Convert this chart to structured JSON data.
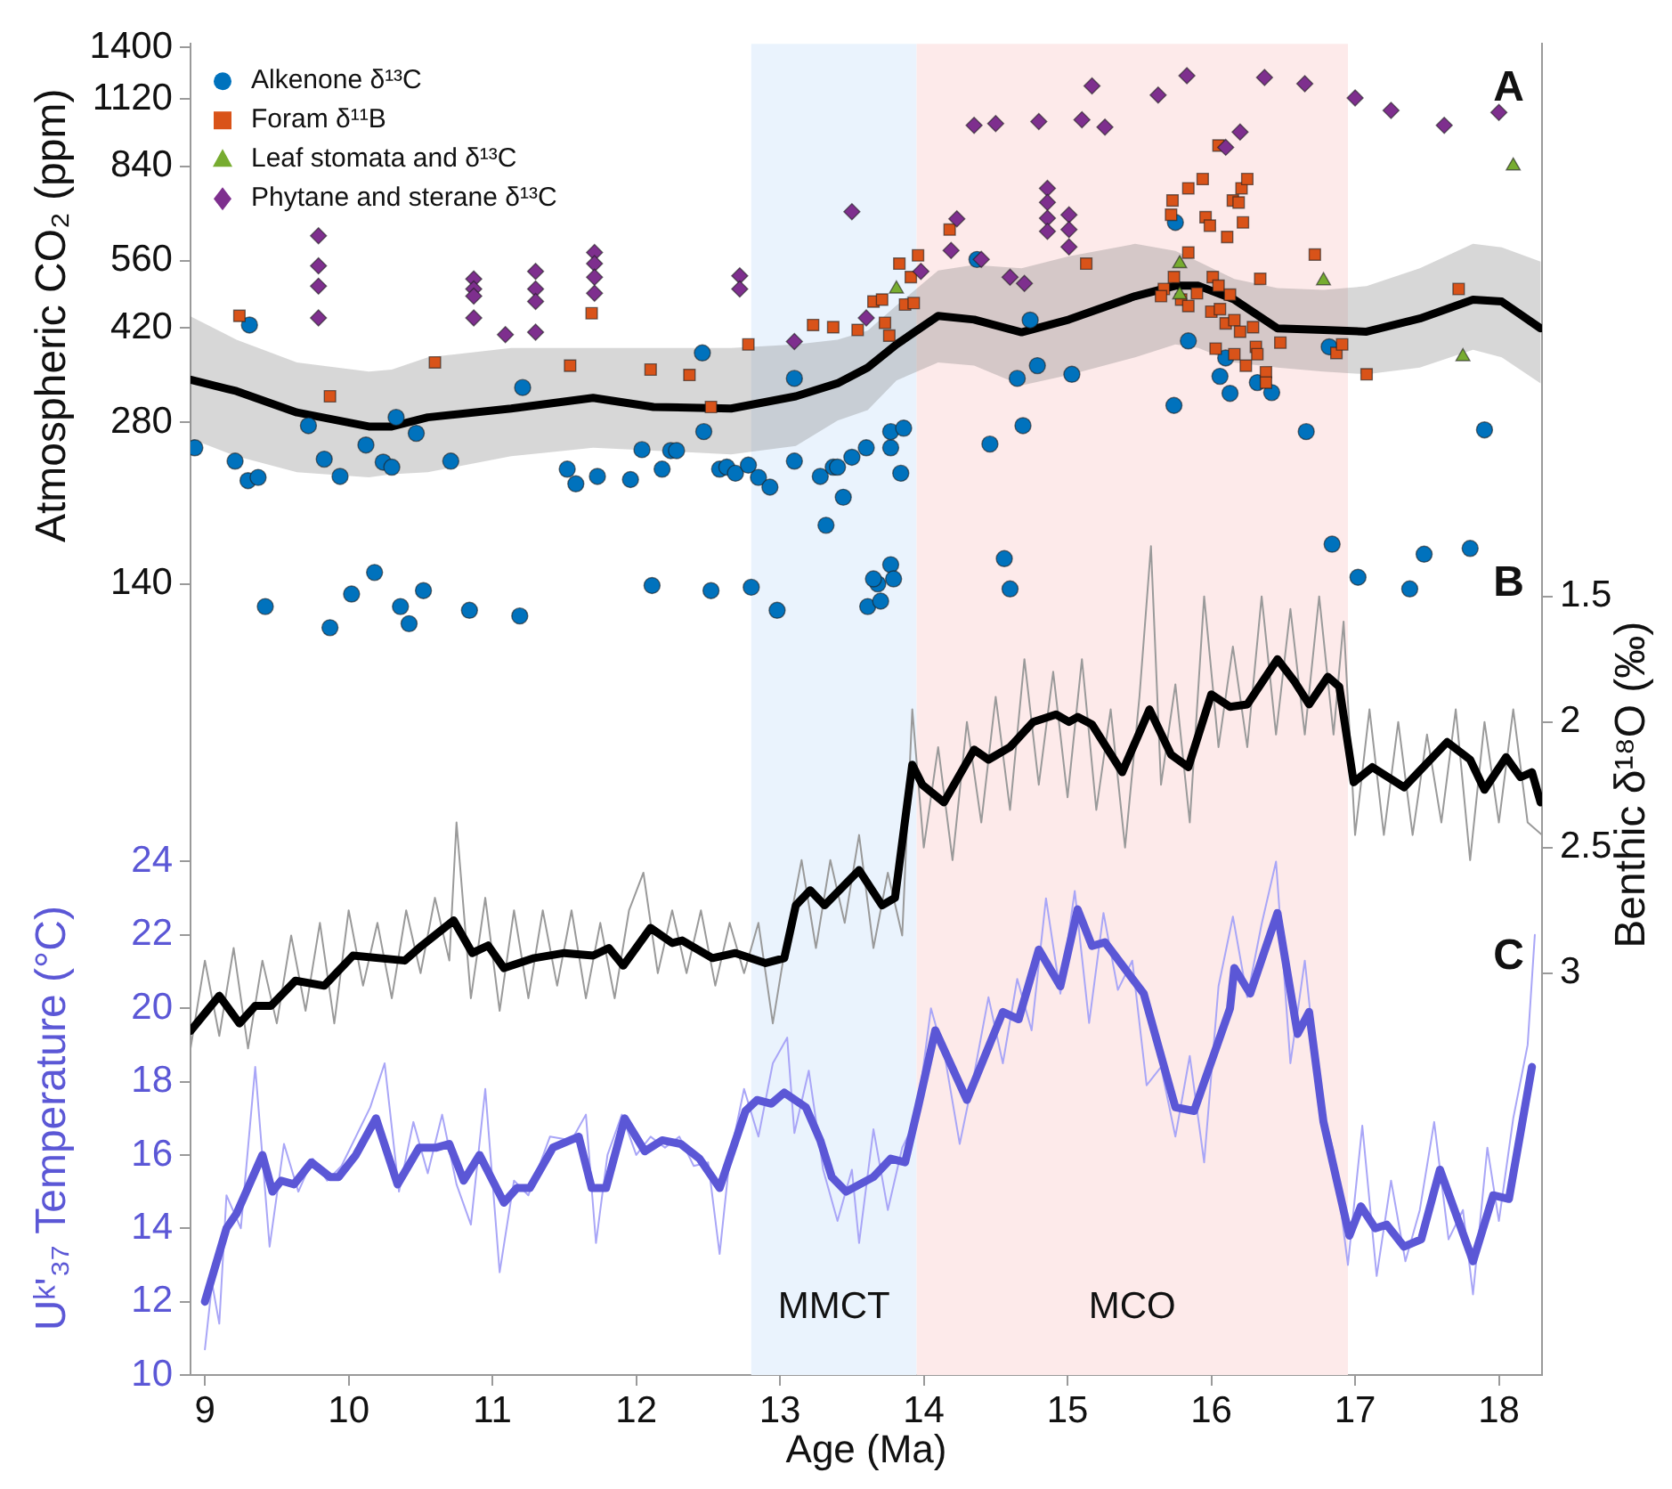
{
  "chart_data": {
    "type": "line",
    "xlabel": "Age (Ma)",
    "ylabel": "Atmospheric CO₂ (ppm)",
    "y2label": "Benthic δ¹⁸O (‰)",
    "y3label": "Uᵏ'₃₇ Temperature (°C)",
    "xlim": [
      8.9,
      18.3
    ],
    "xticks": [
      9,
      10,
      11,
      12,
      13,
      14,
      15,
      16,
      17,
      18
    ],
    "ylim": [
      4.7,
      1420
    ],
    "yticks": [
      140,
      280,
      420,
      560,
      840,
      1120,
      1400
    ],
    "log": "y",
    "y2lim": [
      4.6,
      -0.7
    ],
    "y2ticks": [
      1.5,
      2,
      2.5,
      3
    ],
    "y3lim": [
      10,
      46.3
    ],
    "y3ticks": [
      10,
      12,
      14,
      16,
      18,
      20,
      22,
      24
    ],
    "grid": false,
    "legend": "top left",
    "bands": [
      {
        "axis": "x",
        "from": 12.8,
        "to": 13.95,
        "label": "MMCT",
        "color": "#eaf3fd"
      },
      {
        "axis": "x",
        "from": 13.95,
        "to": 16.95,
        "label": "MCO",
        "color": "#fdeaea"
      }
    ],
    "annotations": [
      "A",
      "B",
      "C"
    ],
    "series": [
      {
        "type": "line",
        "axis": "y2",
        "color": "#9a9a9a",
        "x": [
          8.9,
          9.0,
          9.1,
          9.2,
          9.3,
          9.4,
          9.5,
          9.6,
          9.7,
          9.8,
          9.9,
          10.0,
          10.1,
          10.2,
          10.3,
          10.4,
          10.5,
          10.6,
          10.7,
          10.75,
          10.85,
          10.95,
          11.05,
          11.15,
          11.25,
          11.35,
          11.45,
          11.55,
          11.65,
          11.75,
          11.85,
          11.95,
          12.05,
          12.15,
          12.25,
          12.35,
          12.45,
          12.55,
          12.65,
          12.75,
          12.85,
          12.95,
          13.05,
          13.15,
          13.25,
          13.35,
          13.45,
          13.55,
          13.65,
          13.75,
          13.85,
          13.92,
          14.0,
          14.1,
          14.2,
          14.3,
          14.4,
          14.5,
          14.6,
          14.7,
          14.8,
          14.9,
          15.0,
          15.1,
          15.2,
          15.3,
          15.4,
          15.5,
          15.58,
          15.65,
          15.75,
          15.85,
          15.95,
          16.05,
          16.15,
          16.25,
          16.35,
          16.45,
          16.55,
          16.65,
          16.75,
          16.85,
          16.92,
          17.0,
          17.1,
          17.2,
          17.3,
          17.4,
          17.5,
          17.6,
          17.7,
          17.8,
          17.9,
          18.0,
          18.1,
          18.2,
          18.3
        ],
        "values": [
          3.3,
          2.95,
          3.25,
          2.9,
          3.3,
          2.95,
          3.2,
          2.85,
          3.15,
          2.8,
          3.2,
          2.75,
          3.05,
          2.8,
          3.1,
          2.75,
          3.0,
          2.7,
          2.95,
          2.4,
          3.1,
          2.7,
          3.15,
          2.75,
          3.1,
          2.75,
          3.05,
          2.75,
          3.1,
          2.8,
          3.1,
          2.75,
          2.6,
          3.0,
          2.75,
          3.0,
          2.75,
          3.05,
          2.8,
          3.0,
          2.8,
          3.2,
          2.85,
          2.55,
          2.9,
          2.55,
          2.8,
          2.45,
          2.9,
          2.6,
          2.85,
          1.95,
          2.5,
          2.1,
          2.55,
          2.0,
          2.4,
          1.9,
          2.35,
          1.75,
          2.25,
          1.8,
          2.3,
          1.75,
          2.35,
          1.95,
          2.5,
          1.9,
          1.3,
          2.25,
          1.85,
          2.4,
          1.5,
          2.1,
          1.7,
          2.1,
          1.5,
          2.05,
          1.55,
          2.05,
          1.5,
          2.05,
          1.6,
          2.45,
          1.95,
          2.45,
          2.0,
          2.45,
          2.05,
          2.4,
          1.95,
          2.55,
          2.0,
          2.4,
          1.95,
          2.4,
          2.45
        ]
      },
      {
        "type": "line",
        "axis": "y3",
        "color": "#a9a6f7",
        "x": [
          9.0,
          9.05,
          9.1,
          9.15,
          9.25,
          9.35,
          9.45,
          9.55,
          9.65,
          9.75,
          9.85,
          9.95,
          10.05,
          10.15,
          10.25,
          10.35,
          10.45,
          10.55,
          10.65,
          10.75,
          10.85,
          10.95,
          11.05,
          11.15,
          11.25,
          11.4,
          11.55,
          11.65,
          11.72,
          11.8,
          11.9,
          12.0,
          12.1,
          12.2,
          12.3,
          12.4,
          12.5,
          12.58,
          12.65,
          12.75,
          12.85,
          12.95,
          13.05,
          13.1,
          13.2,
          13.3,
          13.4,
          13.5,
          13.55,
          13.65,
          13.75,
          13.85,
          13.95,
          14.05,
          14.15,
          14.25,
          14.35,
          14.45,
          14.55,
          14.65,
          14.75,
          14.85,
          14.95,
          15.05,
          15.15,
          15.25,
          15.35,
          15.45,
          15.55,
          15.65,
          15.75,
          15.85,
          15.95,
          16.05,
          16.15,
          16.25,
          16.35,
          16.45,
          16.55,
          16.65,
          16.75,
          16.85,
          16.95,
          17.05,
          17.15,
          17.25,
          17.35,
          17.45,
          17.55,
          17.65,
          17.75,
          17.82,
          17.92,
          18.0,
          18.1,
          18.2,
          18.25
        ],
        "values": [
          10.7,
          12.5,
          11.4,
          14.9,
          14.0,
          18.4,
          13.5,
          16.3,
          15.0,
          15.9,
          15.3,
          15.7,
          16.5,
          17.3,
          18.5,
          15.0,
          16.9,
          15.5,
          17.1,
          15.2,
          14.1,
          17.8,
          12.8,
          15.3,
          14.9,
          16.5,
          16.4,
          17.1,
          13.6,
          16.0,
          17.1,
          16.0,
          16.5,
          16.2,
          16.5,
          15.7,
          15.8,
          13.3,
          15.9,
          17.8,
          16.5,
          18.5,
          19.2,
          16.6,
          18.3,
          15.6,
          14.2,
          15.6,
          13.6,
          16.7,
          14.5,
          16.2,
          17.0,
          20.0,
          18.6,
          16.3,
          18.2,
          20.3,
          18.5,
          20.8,
          19.4,
          23.0,
          20.4,
          23.2,
          19.6,
          22.6,
          20.5,
          21.3,
          17.9,
          18.4,
          16.5,
          18.7,
          15.8,
          20.6,
          22.5,
          20.3,
          22.3,
          24.0,
          18.5,
          21.3,
          17.6,
          16.1,
          13.0,
          16.8,
          12.7,
          15.3,
          13.1,
          14.5,
          16.9,
          13.7,
          14.5,
          12.2,
          16.2,
          14.2,
          17.0,
          19.0,
          22.0
        ]
      },
      {
        "type": "line",
        "axis": "y",
        "color": "#000000",
        "x": [
          8.9,
          9.22,
          9.64,
          10.14,
          10.3,
          10.55,
          11.13,
          11.7,
          12.12,
          12.66,
          13.11,
          13.4,
          13.61,
          13.81,
          14.1,
          14.35,
          14.68,
          15.01,
          15.47,
          15.75,
          15.91,
          16.16,
          16.46,
          16.78,
          17.08,
          17.45,
          17.82,
          18.02,
          18.29
        ],
        "values": [
          336,
          320,
          292,
          275,
          275,
          286,
          297,
          311,
          299,
          297,
          313,
          331,
          354,
          391,
          442,
          435,
          412,
          435,
          481,
          503,
          503,
          474,
          419,
          416,
          413,
          437,
          474,
          470,
          419
        ],
        "upper": [
          441,
          399,
          362,
          348,
          351,
          370,
          385,
          385,
          385,
          385,
          391,
          399,
          415,
          462,
          537,
          550,
          542,
          571,
          602,
          584,
          558,
          518,
          498,
          494,
          502,
          542,
          602,
          593,
          558
        ],
        "lower": [
          261,
          242,
          226,
          221,
          224,
          226,
          242,
          251,
          248,
          244,
          253,
          282,
          295,
          335,
          362,
          357,
          328,
          343,
          370,
          391,
          385,
          362,
          354,
          348,
          344,
          354,
          382,
          370,
          331
        ]
      },
      {
        "type": "line",
        "axis": "y2",
        "color": "#000000",
        "x": [
          8.9,
          9.1,
          9.24,
          9.35,
          9.46,
          9.63,
          9.83,
          10.03,
          10.39,
          10.51,
          10.73,
          10.86,
          10.97,
          11.08,
          11.29,
          11.5,
          11.7,
          11.81,
          11.91,
          12.1,
          12.25,
          12.32,
          12.53,
          12.69,
          12.9,
          13.03,
          13.11,
          13.21,
          13.31,
          13.55,
          13.71,
          13.8,
          13.92,
          13.99,
          14.14,
          14.35,
          14.45,
          14.6,
          14.76,
          14.92,
          15.01,
          15.07,
          15.17,
          15.38,
          15.57,
          15.72,
          15.84,
          16.0,
          16.13,
          16.25,
          16.46,
          16.58,
          16.68,
          16.81,
          16.89,
          16.99,
          17.12,
          17.34,
          17.64,
          17.8,
          17.9,
          18.05,
          18.15,
          18.23,
          18.29
        ],
        "values": [
          3.23,
          3.09,
          3.2,
          3.13,
          3.13,
          3.03,
          3.05,
          2.93,
          2.95,
          2.89,
          2.79,
          2.92,
          2.89,
          2.98,
          2.94,
          2.92,
          2.93,
          2.9,
          2.97,
          2.82,
          2.88,
          2.87,
          2.94,
          2.92,
          2.96,
          2.94,
          2.73,
          2.67,
          2.73,
          2.59,
          2.73,
          2.7,
          2.17,
          2.25,
          2.32,
          2.11,
          2.15,
          2.1,
          2.0,
          1.97,
          2.0,
          1.98,
          2.01,
          2.2,
          1.95,
          2.13,
          2.18,
          1.89,
          1.94,
          1.93,
          1.75,
          1.84,
          1.93,
          1.82,
          1.86,
          2.24,
          2.18,
          2.26,
          2.08,
          2.15,
          2.27,
          2.14,
          2.22,
          2.2,
          2.32
        ]
      },
      {
        "type": "line",
        "axis": "y3",
        "color": "#5b57d6",
        "x": [
          9.0,
          9.15,
          9.22,
          9.4,
          9.47,
          9.53,
          9.62,
          9.74,
          9.87,
          9.93,
          10.05,
          10.19,
          10.34,
          10.49,
          10.61,
          10.7,
          10.8,
          10.91,
          11.08,
          11.17,
          11.26,
          11.42,
          11.6,
          11.69,
          11.79,
          11.92,
          12.06,
          12.18,
          12.31,
          12.44,
          12.58,
          12.76,
          12.84,
          12.94,
          13.03,
          13.18,
          13.28,
          13.36,
          13.46,
          13.65,
          13.77,
          13.87,
          13.96,
          14.08,
          14.3,
          14.55,
          14.66,
          14.8,
          14.95,
          15.07,
          15.17,
          15.26,
          15.53,
          15.75,
          15.88,
          16.13,
          16.16,
          16.27,
          16.46,
          16.6,
          16.68,
          16.78,
          16.96,
          17.04,
          17.14,
          17.22,
          17.34,
          17.46,
          17.59,
          17.82,
          17.96,
          18.07,
          18.23
        ],
        "values": [
          12.0,
          14.0,
          14.4,
          16.0,
          15.0,
          15.3,
          15.2,
          15.8,
          15.4,
          15.4,
          16.0,
          17.0,
          15.2,
          16.2,
          16.2,
          16.3,
          15.3,
          16.0,
          14.7,
          15.1,
          15.1,
          16.2,
          16.5,
          15.1,
          15.1,
          17.0,
          16.1,
          16.4,
          16.3,
          15.9,
          15.1,
          17.2,
          17.5,
          17.4,
          17.7,
          17.3,
          16.4,
          15.4,
          15.0,
          15.4,
          15.9,
          15.8,
          17.3,
          19.4,
          17.5,
          19.9,
          19.7,
          21.6,
          20.6,
          22.7,
          21.7,
          21.8,
          20.4,
          17.3,
          17.2,
          20.0,
          21.1,
          20.4,
          22.6,
          19.3,
          19.9,
          16.9,
          13.8,
          14.6,
          14.0,
          14.1,
          13.5,
          13.7,
          15.6,
          13.1,
          14.9,
          14.8,
          18.4
        ]
      },
      {
        "type": "scatter",
        "name": "Alkenone δ¹³C",
        "axis": "y",
        "marker": "circle",
        "color": "#0072bd",
        "x": [
          8.93,
          9.21,
          9.3,
          9.37,
          9.31,
          9.42,
          9.72,
          9.83,
          9.94,
          9.87,
          10.02,
          10.12,
          10.18,
          10.24,
          10.3,
          10.33,
          10.36,
          10.42,
          10.47,
          10.52,
          10.71,
          10.84,
          11.21,
          11.19,
          11.52,
          11.58,
          11.73,
          11.96,
          12.04,
          12.11,
          12.18,
          12.24,
          12.28,
          12.46,
          12.47,
          12.52,
          12.58,
          12.63,
          12.69,
          12.78,
          12.8,
          12.85,
          12.93,
          12.98,
          13.1,
          13.1,
          13.28,
          13.32,
          13.37,
          13.4,
          13.44,
          13.5,
          13.6,
          13.77,
          13.77,
          13.86,
          13.84,
          13.68,
          13.65,
          13.77,
          13.61,
          13.7,
          13.79,
          14.37,
          14.74,
          14.79,
          14.65,
          15.03,
          14.46,
          14.69,
          14.56,
          14.6,
          15.75,
          15.84,
          16.06,
          16.13,
          16.1,
          16.32,
          16.42,
          15.74,
          16.66,
          16.82,
          16.84,
          17.02,
          17.38,
          17.48,
          17.8,
          17.9
        ],
        "values": [
          251,
          237,
          218,
          221,
          425,
          127,
          276,
          239,
          222,
          116,
          134,
          254,
          147,
          236,
          231,
          286,
          127,
          118,
          267,
          136,
          237,
          125,
          325,
          122,
          229,
          215,
          222,
          219,
          249,
          139,
          229,
          248,
          248,
          377,
          269,
          136,
          229,
          231,
          225,
          233,
          138,
          221,
          212,
          125,
          338,
          237,
          222,
          180,
          231,
          231,
          203,
          241,
          251,
          251,
          269,
          273,
          225,
          140,
          143,
          152,
          127,
          130,
          143,
          563,
          434,
          357,
          338,
          344,
          255,
          276,
          156,
          137,
          660,
          397,
          341,
          317,
          369,
          332,
          318,
          301,
          269,
          387,
          166,
          144,
          137,
          159,
          163,
          271
        ]
      },
      {
        "type": "scatter",
        "name": "Foram δ¹¹B",
        "axis": "y",
        "marker": "square",
        "color": "#d95319",
        "x": [
          9.24,
          9.87,
          10.6,
          11.54,
          11.69,
          12.1,
          12.37,
          12.52,
          12.78,
          13.23,
          13.37,
          13.54,
          13.65,
          13.71,
          13.73,
          13.76,
          13.83,
          13.96,
          13.91,
          13.87,
          13.93,
          14.18,
          15.13,
          15.73,
          15.72,
          15.84,
          15.94,
          15.96,
          15.99,
          16.11,
          16.05,
          16.15,
          16.19,
          16.21,
          16.25,
          16.22,
          15.84,
          15.74,
          15.67,
          15.65,
          15.79,
          15.84,
          15.9,
          16.01,
          16.05,
          16.13,
          16.0,
          16.06,
          16.1,
          16.16,
          16.2,
          16.29,
          16.34,
          16.03,
          16.16,
          16.24,
          16.31,
          16.32,
          16.38,
          16.38,
          16.48,
          16.72,
          16.87,
          16.91,
          17.08,
          17.72
        ],
        "values": [
          442,
          313,
          362,
          357,
          447,
          351,
          343,
          299,
          391,
          425,
          421,
          416,
          470,
          474,
          429,
          406,
          553,
          573,
          522,
          464,
          467,
          640,
          553,
          725,
          682,
          764,
          795,
          675,
          651,
          620,
          918,
          725,
          719,
          764,
          795,
          660,
          580,
          522,
          496,
          481,
          474,
          461,
          487,
          522,
          503,
          484,
          450,
          455,
          428,
          434,
          413,
          421,
          518,
          384,
          375,
          357,
          387,
          375,
          347,
          332,
          394,
          575,
          377,
          391,
          344,
          496
        ]
      },
      {
        "type": "scatter",
        "name": "Leaf stomata and δ¹³C",
        "axis": "y",
        "marker": "triangle",
        "color": "#77ac30",
        "x": [
          13.81,
          15.78,
          15.78,
          16.78,
          17.75,
          18.1
        ],
        "values": [
          496,
          553,
          484,
          514,
          371,
          841
        ]
      },
      {
        "type": "scatter",
        "name": "Phytane and sterane δ¹³C",
        "axis": "y",
        "marker": "diamond",
        "color": "#7e2f8e",
        "x": [
          9.79,
          9.79,
          9.79,
          9.79,
          10.87,
          10.87,
          10.87,
          10.87,
          11.09,
          11.3,
          11.3,
          11.3,
          11.3,
          11.71,
          11.71,
          11.71,
          11.71,
          12.72,
          12.72,
          13.1,
          13.5,
          13.6,
          13.98,
          14.19,
          14.23,
          14.35,
          14.5,
          14.4,
          14.6,
          14.7,
          14.8,
          14.86,
          14.86,
          14.86,
          14.86,
          15.01,
          15.01,
          15.01,
          15.1,
          15.17,
          15.26,
          15.63,
          15.83,
          16.1,
          16.2,
          16.37,
          16.65,
          17.0,
          17.25,
          17.62,
          18.0
        ],
        "values": [
          623,
          548,
          502,
          438,
          518,
          496,
          481,
          438,
          408,
          535,
          496,
          470,
          412,
          580,
          553,
          522,
          487,
          525,
          496,
          396,
          691,
          438,
          535,
          585,
          670,
          1001,
          1009,
          563,
          522,
          508,
          1017,
          764,
          719,
          672,
          635,
          682,
          640,
          594,
          1025,
          1185,
          993,
          1140,
          1238,
          911,
          973,
          1229,
          1197,
          1126,
          1067,
          1001,
          1058
        ]
      }
    ]
  }
}
